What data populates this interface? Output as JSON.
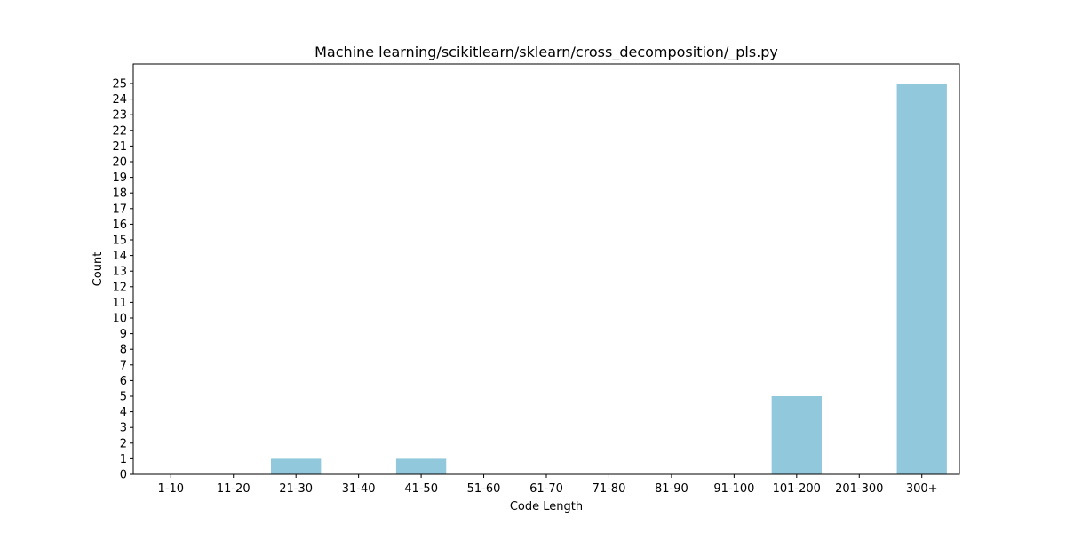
{
  "chart_data": {
    "type": "bar",
    "title": "Machine learning/scikitlearn/sklearn/cross_decomposition/_pls.py",
    "xlabel": "Code Length",
    "ylabel": "Count",
    "categories": [
      "1-10",
      "11-20",
      "21-30",
      "31-40",
      "41-50",
      "51-60",
      "61-70",
      "71-80",
      "81-90",
      "91-100",
      "101-200",
      "201-300",
      "300+"
    ],
    "values": [
      0,
      0,
      1,
      0,
      1,
      0,
      0,
      0,
      0,
      0,
      5,
      0,
      25
    ],
    "ylim": [
      0,
      26.25
    ],
    "yticks": [
      0,
      1,
      2,
      3,
      4,
      5,
      6,
      7,
      8,
      9,
      10,
      11,
      12,
      13,
      14,
      15,
      16,
      17,
      18,
      19,
      20,
      21,
      22,
      23,
      24,
      25
    ],
    "bar_color": "#92c8dc",
    "grid": false,
    "legend": "none"
  }
}
